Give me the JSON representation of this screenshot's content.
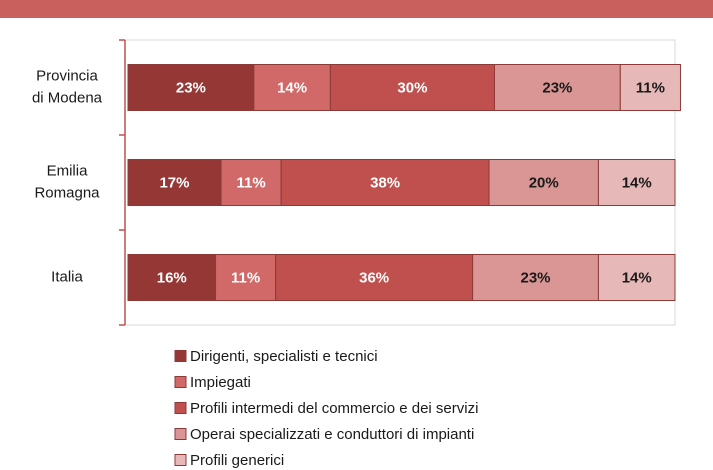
{
  "chart_data": {
    "type": "stacked-barh",
    "categories": [
      [
        "Provincia",
        "di Modena"
      ],
      [
        "Emilia",
        "Romagna"
      ],
      [
        "Italia"
      ]
    ],
    "series": [
      {
        "name": "Dirigenti, specialisti e tecnici",
        "color": "#953735",
        "text_color": "#ffffff",
        "values": [
          23,
          17,
          16
        ],
        "value_labels": [
          "23%",
          "17%",
          "16%"
        ]
      },
      {
        "name": "Impiegati",
        "color": "#d06968",
        "text_color": "#ffffff",
        "values": [
          14,
          11,
          11
        ],
        "value_labels": [
          "14%",
          "11%",
          "11%"
        ]
      },
      {
        "name": "Profili intermedi del commercio e dei servizi",
        "color": "#c0504d",
        "text_color": "#ffffff",
        "values": [
          30,
          38,
          36
        ],
        "value_labels": [
          "30%",
          "38%",
          "36%"
        ]
      },
      {
        "name": "Operai specializzati e conduttori di impianti",
        "color": "#d99694",
        "text_color": "#1a1a1a",
        "values": [
          23,
          20,
          23
        ],
        "value_labels": [
          "23%",
          "20%",
          "23%"
        ]
      },
      {
        "name": "Profili generici",
        "color": "#e6b9b8",
        "text_color": "#1a1a1a",
        "values": [
          11,
          14,
          14
        ],
        "value_labels": [
          "11%",
          "14%",
          "14%"
        ]
      }
    ],
    "xlim": [
      0,
      100
    ]
  }
}
